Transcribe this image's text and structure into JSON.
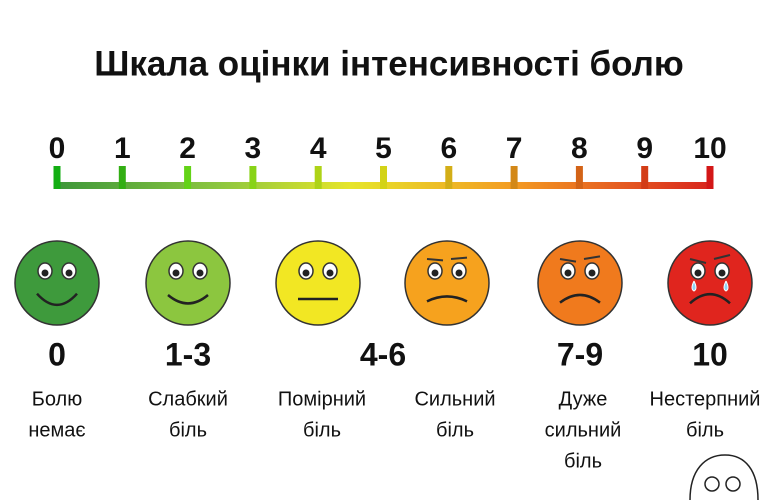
{
  "title": "Шкала оцінки інтенсивності болю",
  "scale": {
    "ticks": [
      0,
      1,
      2,
      3,
      4,
      5,
      6,
      7,
      8,
      9,
      10
    ]
  },
  "ranges": [
    "0",
    "1-3",
    "4-6",
    "7-9",
    "10"
  ],
  "descriptions": [
    [
      "Болю",
      "немає"
    ],
    [
      "Слабкий",
      "біль"
    ],
    [
      "Помірний",
      "біль"
    ],
    [
      "Сильний",
      "біль"
    ],
    [
      "Дуже",
      "сильний",
      "біль"
    ],
    [
      "Нестерпний",
      "біль"
    ]
  ]
}
